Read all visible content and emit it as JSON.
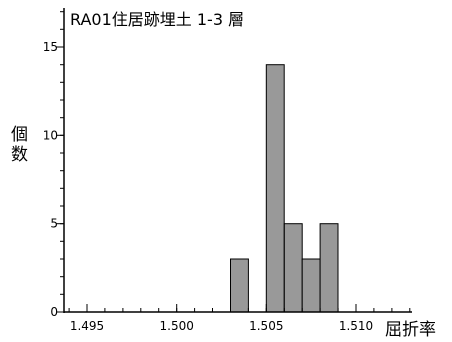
{
  "chart_data": {
    "type": "bar",
    "title": "RA01住居跡埋土 1-3 層",
    "xlabel": "屈折率",
    "ylabel": "個数",
    "xlim": [
      1.4925,
      1.5135
    ],
    "ylim": [
      0,
      17
    ],
    "bin_width": 0.001,
    "bins": [
      {
        "x0": 1.503,
        "x1": 1.504,
        "count": 3
      },
      {
        "x0": 1.505,
        "x1": 1.506,
        "count": 14
      },
      {
        "x0": 1.506,
        "x1": 1.507,
        "count": 5
      },
      {
        "x0": 1.507,
        "x1": 1.508,
        "count": 3
      },
      {
        "x0": 1.508,
        "x1": 1.509,
        "count": 5
      }
    ],
    "x_major_ticks": [
      {
        "value": 1.495,
        "label": "1.495"
      },
      {
        "value": 1.5,
        "label": "1.500"
      },
      {
        "value": 1.505,
        "label": "1.505"
      },
      {
        "value": 1.51,
        "label": "1.510"
      }
    ],
    "x_minor_step": 0.001,
    "y_major_ticks": [
      {
        "value": 0,
        "label": "0"
      },
      {
        "value": 5,
        "label": "5"
      },
      {
        "value": 10,
        "label": "10"
      },
      {
        "value": 15,
        "label": "15"
      }
    ],
    "y_minor_step": 1,
    "grid": false,
    "colors": {
      "bar_fill": "#999999",
      "bar_edge": "#000000",
      "axis": "#000000"
    }
  }
}
